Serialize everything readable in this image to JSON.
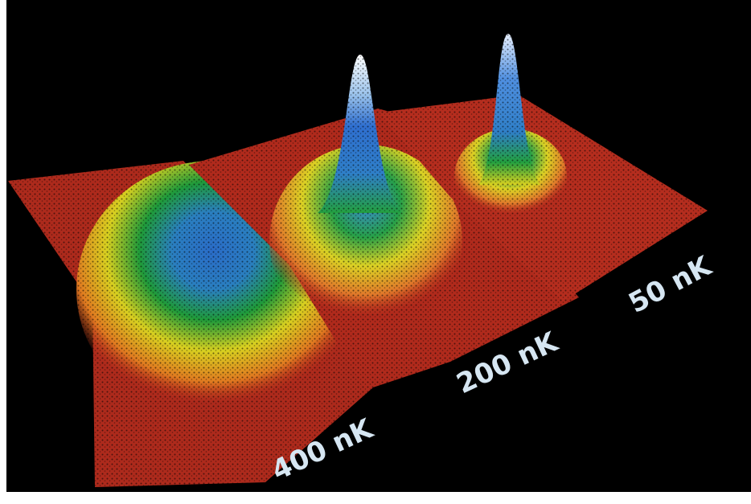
{
  "panels": [
    {
      "label": "400 nK"
    },
    {
      "label": "200 nK"
    },
    {
      "label": "50 nK"
    }
  ]
}
